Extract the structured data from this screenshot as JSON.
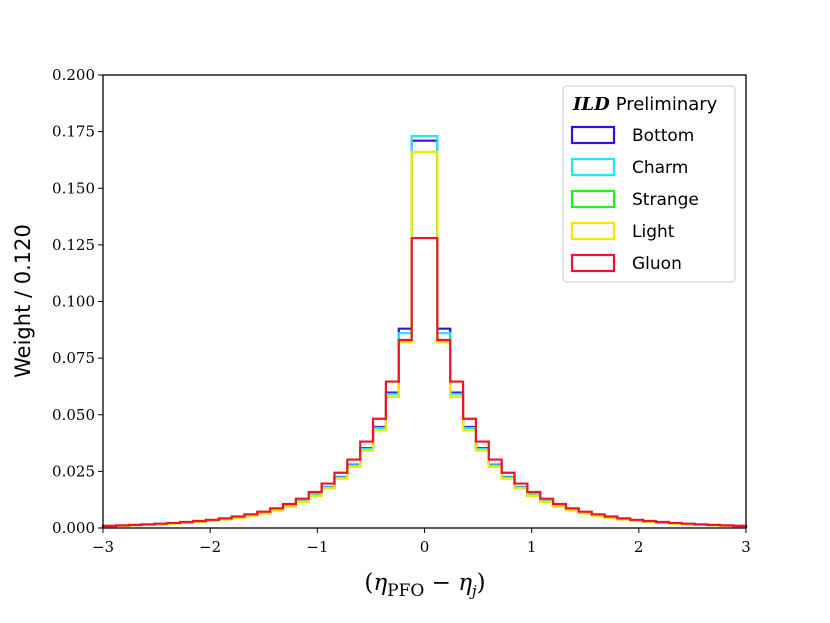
{
  "chart_data": {
    "type": "step-histogram",
    "title": "",
    "xlabel": "(η_PFO − η_j)",
    "xlabel_parts": {
      "open": "(",
      "eta1": "η",
      "sub1": "PFO",
      "minus": " − ",
      "eta2": "η",
      "sub2": "j",
      "close": ")"
    },
    "ylabel": "Weight / 0.120",
    "xlim": [
      -3,
      3
    ],
    "ylim": [
      0,
      0.2
    ],
    "xticks": [
      -3,
      -2,
      -1,
      0,
      1,
      2,
      3
    ],
    "xtick_labels": [
      "−3",
      "−2",
      "−1",
      "0",
      "1",
      "2",
      "3"
    ],
    "yticks": [
      0,
      0.025,
      0.05,
      0.075,
      0.1,
      0.125,
      0.15,
      0.175,
      0.2
    ],
    "ytick_labels": [
      "0.000",
      "0.025",
      "0.050",
      "0.075",
      "0.100",
      "0.125",
      "0.150",
      "0.175",
      "0.200"
    ],
    "bin_edges": [
      -3.0,
      -2.88,
      -2.76,
      -2.64,
      -2.52,
      -2.4,
      -2.28,
      -2.16,
      -2.04,
      -1.92,
      -1.8,
      -1.68,
      -1.56,
      -1.44,
      -1.32,
      -1.2,
      -1.08,
      -0.96,
      -0.84,
      -0.72,
      -0.6,
      -0.48,
      -0.36,
      -0.24,
      -0.12,
      0.0,
      0.12,
      0.24,
      0.36,
      0.48,
      0.6,
      0.72,
      0.84,
      0.96,
      1.08,
      1.2,
      1.32,
      1.44,
      1.56,
      1.68,
      1.8,
      1.92,
      2.04,
      2.16,
      2.28,
      2.4,
      2.52,
      2.64,
      2.76,
      2.88,
      3.0
    ],
    "bin_edges_note": "bins of width 0.120 centred on 0",
    "series": [
      {
        "name": "Bottom",
        "color": "#2c14e0"
      },
      {
        "name": "Charm",
        "color": "#22e6f2"
      },
      {
        "name": "Strange",
        "color": "#22ee22"
      },
      {
        "name": "Light",
        "color": "#f7e600"
      },
      {
        "name": "Gluon",
        "color": "#f2112e"
      }
    ],
    "peak_values": {
      "Bottom": 0.171,
      "Charm": 0.173,
      "Strange": 0.166,
      "Light": 0.166,
      "Gluon": 0.128
    },
    "legend": {
      "title_bold": "ILD",
      "title_rest": "Preliminary",
      "position": "upper right"
    }
  }
}
